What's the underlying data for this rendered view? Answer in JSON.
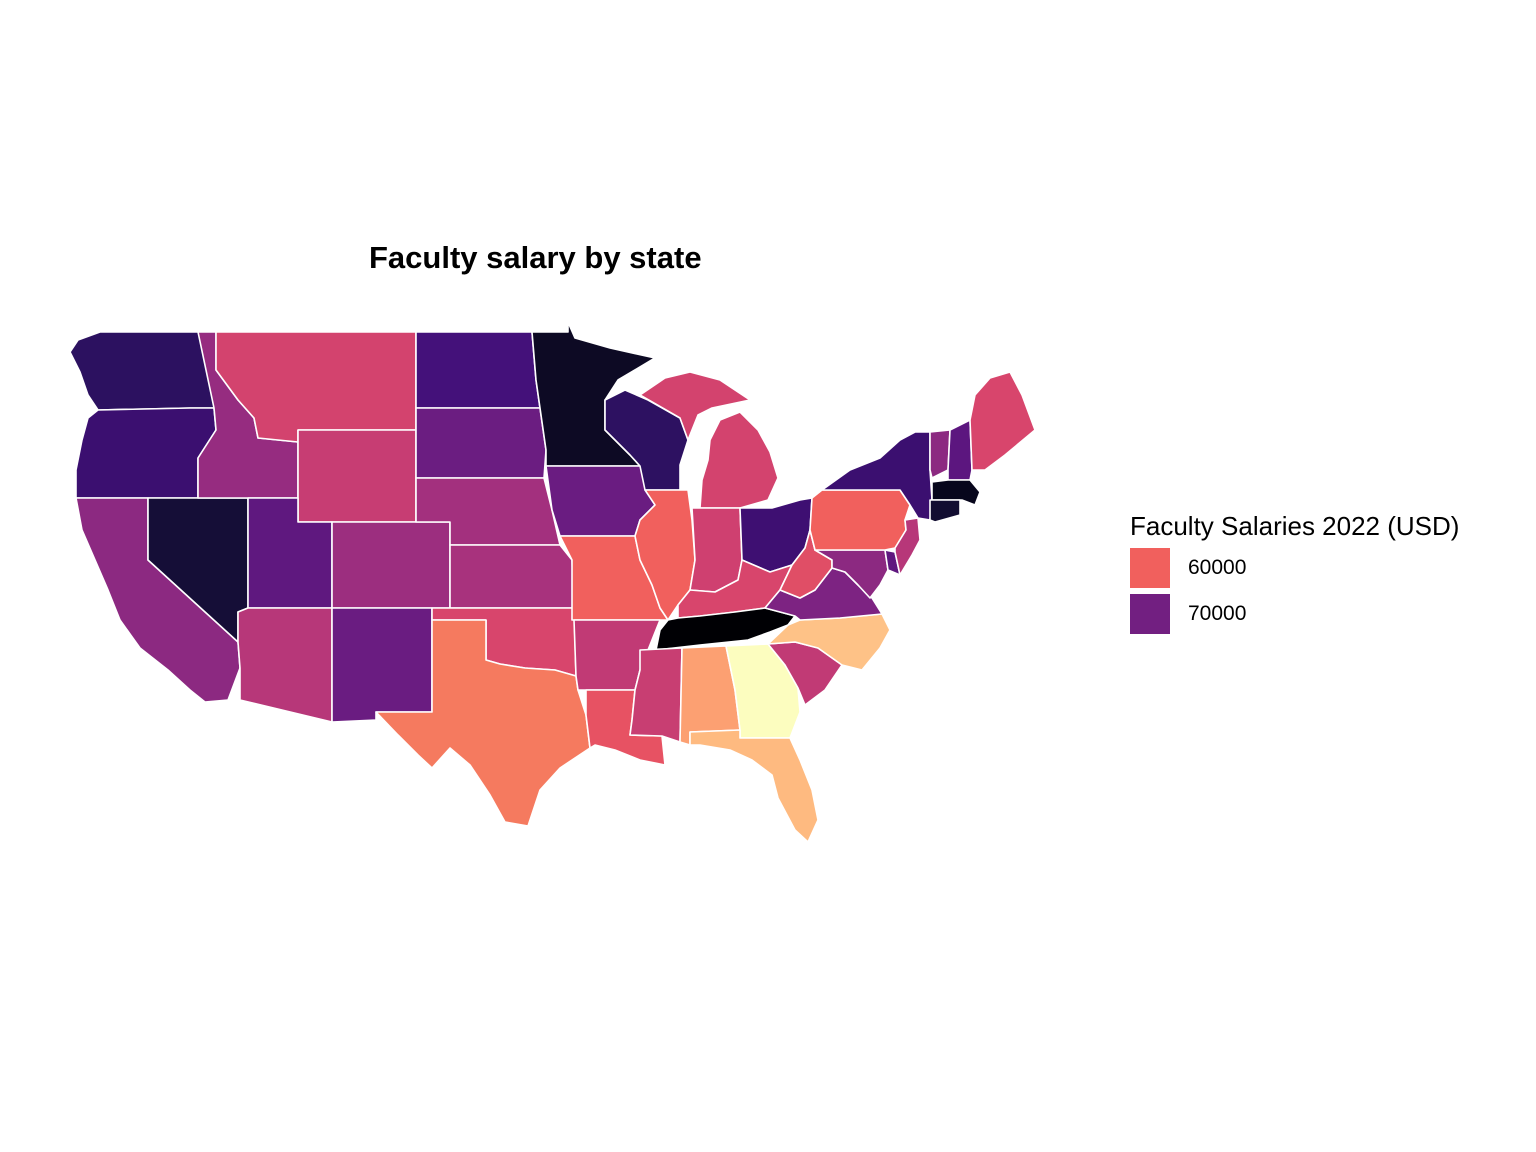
{
  "chart_data": {
    "type": "choropleth",
    "title": "Faculty salary by state",
    "legend": {
      "title": "Faculty Salaries 2022 (USD)",
      "placement": "right",
      "items": [
        {
          "label": "60000",
          "color": "#F1605D"
        },
        {
          "label": "70000",
          "color": "#721F81"
        }
      ]
    },
    "colors": {
      "WA": "#2C1160",
      "OR": "#3B0F70",
      "CA": "#8C2981",
      "NV": "#150E37",
      "ID": "#962C80",
      "MT": "#D3436E",
      "WY": "#C73D73",
      "UT": "#5F187F",
      "AZ": "#B73779",
      "NM": "#6A1C81",
      "CO": "#9C2E7F",
      "ND": "#44117A",
      "SD": "#6B1D81",
      "NE": "#A3307E",
      "KS": "#A8327D",
      "OK": "#D8456C",
      "TX": "#F57A5F",
      "MN": "#0D0A24",
      "IA": "#6A1C81",
      "MO": "#F1605D",
      "AR": "#C13A75",
      "LA": "#E75263",
      "WI": "#2D1161",
      "IL": "#F1605D",
      "MI": "#D3436E",
      "IN": "#CF4070",
      "OH": "#3E0F72",
      "KY": "#D8456C",
      "TN": "#000004",
      "MS": "#C83E72",
      "AL": "#FCA072",
      "GA": "#FCFDBF",
      "FL": "#FEBA80",
      "SC": "#C13A75",
      "NC": "#FEC287",
      "VA": "#7D2382",
      "WV": "#E04E66",
      "PA": "#F1605D",
      "NY": "#3B0F70",
      "ME": "#D8456C",
      "VT": "#8C2981",
      "NH": "#5C167F",
      "MA": "#07061C",
      "CT": "#120D31",
      "NJ": "#B73779",
      "DE": "#5F187F",
      "MD": "#8C2981"
    }
  }
}
